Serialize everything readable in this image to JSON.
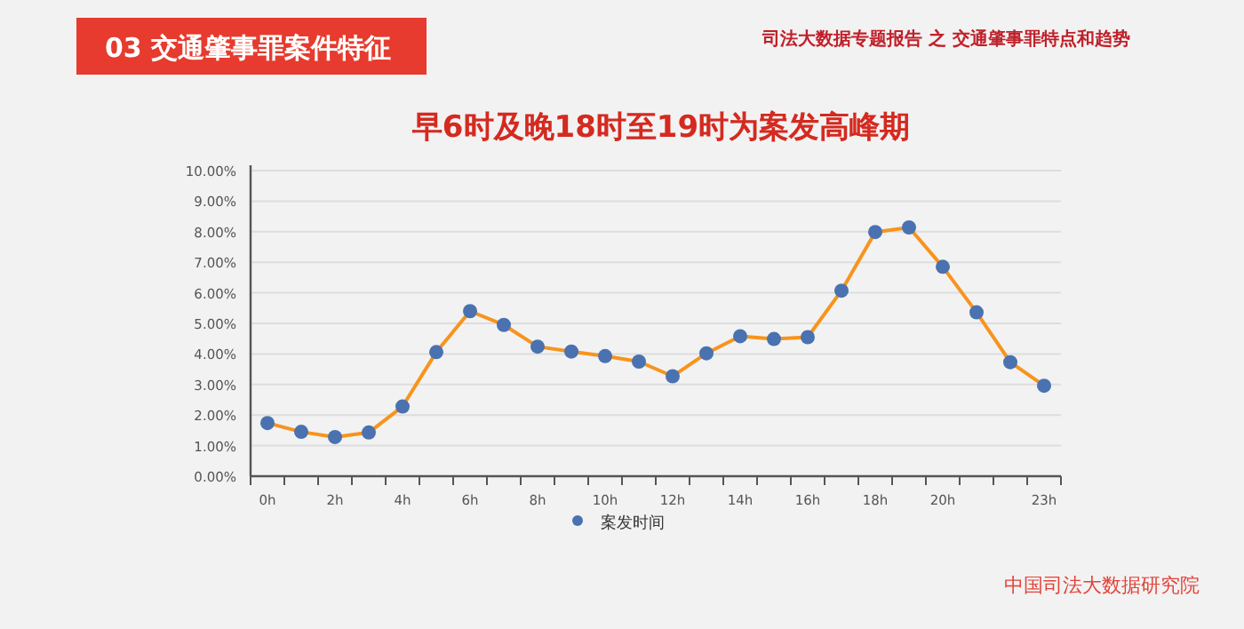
{
  "chart_data": {
    "type": "line",
    "title": "早6时及晚18时至19时为案发高峰期",
    "annotations": [
      "03  交通肇事罪案件特征",
      "司法大数据专题报告 之 交通肇事罪特点和趋势",
      "中国司法大数据研究院"
    ],
    "categories": [
      "0h",
      null,
      "2h",
      null,
      "4h",
      null,
      "6h",
      null,
      "8h",
      null,
      "10h",
      null,
      "12h",
      null,
      "14h",
      null,
      "16h",
      null,
      "18h",
      null,
      "20h",
      null,
      null,
      "23h"
    ],
    "series": [
      {
        "name": "案发时间",
        "color": "#4a72b0",
        "values": [
          1.74,
          1.45,
          1.28,
          1.43,
          2.28,
          4.06,
          5.4,
          4.95,
          4.24,
          4.08,
          3.93,
          3.75,
          3.27,
          4.02,
          4.58,
          4.49,
          4.55,
          6.07,
          7.99,
          8.14,
          6.85,
          5.36,
          3.73,
          2.96
        ]
      }
    ],
    "ylim": [
      0,
      10
    ],
    "yticks": [
      {
        "value": 0,
        "label": "0.00%"
      },
      {
        "value": 1,
        "label": "1.00%"
      },
      {
        "value": 2,
        "label": "2.00%"
      },
      {
        "value": 3,
        "label": "3.00%"
      },
      {
        "value": 4,
        "label": "4.00%"
      },
      {
        "value": 5,
        "label": "5.00%"
      },
      {
        "value": 6,
        "label": "6.00%"
      },
      {
        "value": 7,
        "label": "7.00%"
      },
      {
        "value": 8,
        "label": "8.00%"
      },
      {
        "value": 9,
        "label": "9.00%"
      },
      {
        "value": 10,
        "label": "10.00%"
      }
    ],
    "grid": "y",
    "legend": "bottom",
    "marker": "circle",
    "line_style": "solid"
  }
}
